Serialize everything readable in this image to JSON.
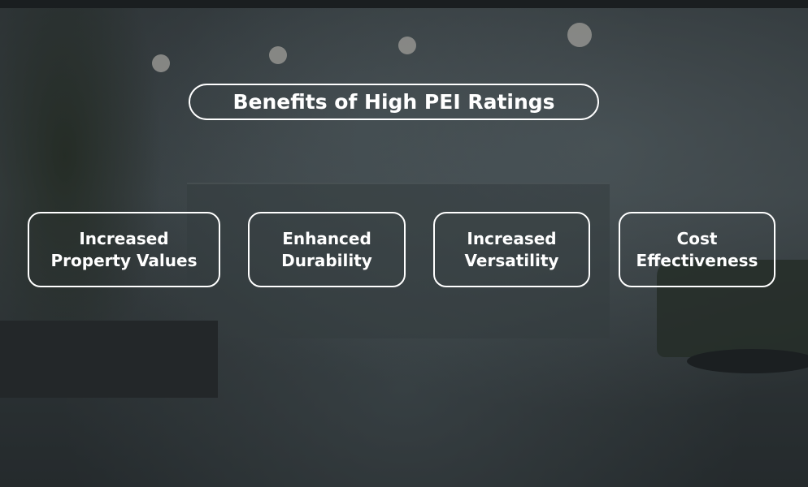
{
  "title": "Benefits of High PEI Ratings",
  "benefits": [
    {
      "line1": "Increased",
      "line2": "Property Values"
    },
    {
      "line1": "Enhanced",
      "line2": "Durability"
    },
    {
      "line1": "Increased",
      "line2": "Versatility"
    },
    {
      "line1": "Cost",
      "line2": "Effectiveness"
    }
  ]
}
